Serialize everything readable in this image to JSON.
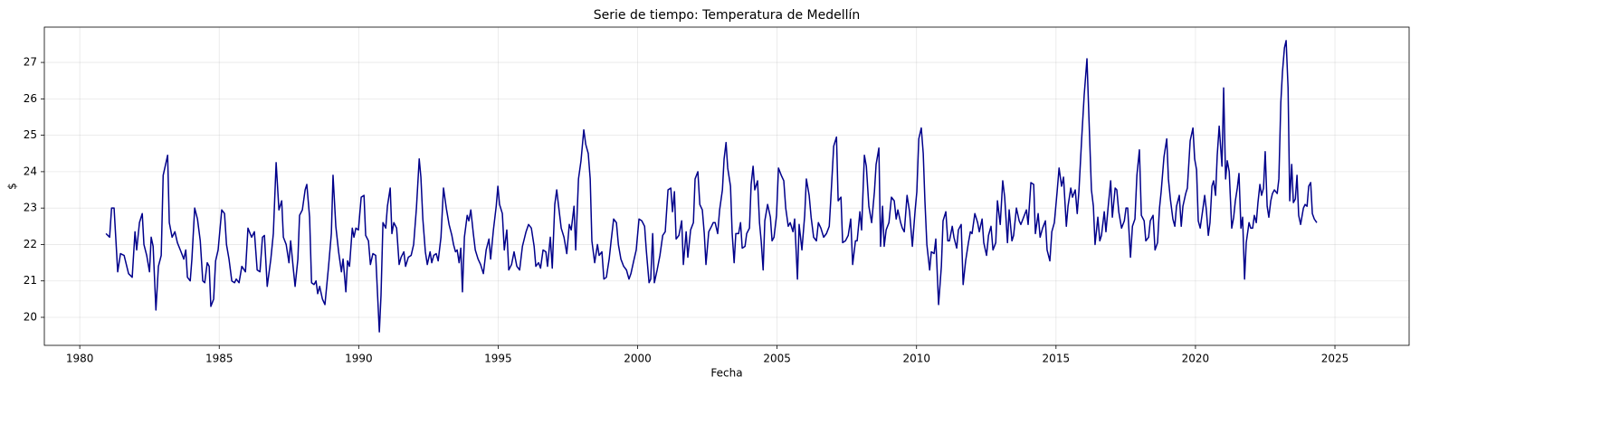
{
  "chart_data": {
    "type": "line",
    "title": "Serie de tiempo: Temperatura de Medellín",
    "x_label": "Fecha",
    "y_label": "$",
    "color": "#00008b",
    "grid": true,
    "xlim": [
      1978.73,
      2027.66
    ],
    "xticks": [
      1980,
      1985,
      1990,
      1995,
      2000,
      2005,
      2010,
      2015,
      2020,
      2025
    ],
    "ylim": [
      19.23,
      27.97
    ],
    "yticks": [
      20,
      21,
      22,
      23,
      24,
      25,
      26,
      27
    ],
    "x": [
      1980.94,
      1981.07,
      1981.14,
      1981.23,
      1981.36,
      1981.46,
      1981.59,
      1981.75,
      1981.88,
      1981.98,
      1982.04,
      1982.14,
      1982.24,
      1982.3,
      1982.4,
      1982.5,
      1982.56,
      1982.63,
      1982.73,
      1982.82,
      1982.92,
      1982.99,
      1983.15,
      1983.21,
      1983.31,
      1983.41,
      1983.5,
      1983.63,
      1983.73,
      1983.8,
      1983.86,
      1983.96,
      1984.02,
      1984.12,
      1984.22,
      1984.32,
      1984.41,
      1984.48,
      1984.57,
      1984.64,
      1984.7,
      1984.8,
      1984.87,
      1984.96,
      1985.09,
      1985.19,
      1985.26,
      1985.35,
      1985.45,
      1985.55,
      1985.61,
      1985.71,
      1985.81,
      1985.94,
      1986.03,
      1986.16,
      1986.26,
      1986.36,
      1986.46,
      1986.55,
      1986.62,
      1986.72,
      1986.85,
      1986.94,
      1987.04,
      1987.14,
      1987.24,
      1987.3,
      1987.4,
      1987.5,
      1987.56,
      1987.66,
      1987.72,
      1987.82,
      1987.88,
      1987.98,
      1988.08,
      1988.14,
      1988.24,
      1988.31,
      1988.4,
      1988.47,
      1988.53,
      1988.6,
      1988.7,
      1988.79,
      1988.92,
      1989.02,
      1989.08,
      1989.18,
      1989.28,
      1989.38,
      1989.44,
      1989.54,
      1989.6,
      1989.67,
      1989.77,
      1989.83,
      1989.9,
      1989.99,
      1990.09,
      1990.19,
      1990.25,
      1990.35,
      1990.42,
      1990.51,
      1990.61,
      1990.74,
      1990.8,
      1990.87,
      1990.97,
      1991.03,
      1991.13,
      1991.19,
      1991.26,
      1991.36,
      1991.45,
      1991.52,
      1991.62,
      1991.68,
      1991.78,
      1991.88,
      1991.97,
      1992.07,
      1992.17,
      1992.23,
      1992.3,
      1992.39,
      1992.46,
      1992.56,
      1992.62,
      1992.69,
      1992.78,
      1992.85,
      1992.95,
      1993.04,
      1993.14,
      1993.24,
      1993.34,
      1993.4,
      1993.47,
      1993.53,
      1993.6,
      1993.66,
      1993.72,
      1993.79,
      1993.89,
      1993.95,
      1994.02,
      1994.11,
      1994.18,
      1994.28,
      1994.37,
      1994.47,
      1994.57,
      1994.67,
      1994.73,
      1994.83,
      1994.93,
      1994.99,
      1995.05,
      1995.15,
      1995.22,
      1995.31,
      1995.38,
      1995.48,
      1995.57,
      1995.67,
      1995.77,
      1995.87,
      1996.0,
      1996.09,
      1996.19,
      1996.29,
      1996.35,
      1996.45,
      1996.52,
      1996.61,
      1996.71,
      1996.77,
      1996.87,
      1996.94,
      1997.03,
      1997.1,
      1997.16,
      1997.26,
      1997.36,
      1997.46,
      1997.55,
      1997.62,
      1997.72,
      1997.78,
      1997.88,
      1997.97,
      1998.07,
      1998.14,
      1998.23,
      1998.3,
      1998.36,
      1998.46,
      1998.56,
      1998.62,
      1998.72,
      1998.79,
      1998.88,
      1998.98,
      1999.05,
      1999.14,
      1999.24,
      1999.31,
      1999.4,
      1999.5,
      1999.6,
      1999.69,
      1999.76,
      1999.86,
      1999.95,
      2000.05,
      2000.15,
      2000.25,
      2000.31,
      2000.41,
      2000.47,
      2000.54,
      2000.6,
      2000.7,
      2000.8,
      2000.9,
      2000.99,
      2001.09,
      2001.19,
      2001.25,
      2001.32,
      2001.38,
      2001.48,
      2001.58,
      2001.64,
      2001.74,
      2001.8,
      2001.9,
      2002.0,
      2002.06,
      2002.16,
      2002.23,
      2002.32,
      2002.39,
      2002.45,
      2002.55,
      2002.65,
      2002.71,
      2002.78,
      2002.87,
      2002.94,
      2003.04,
      2003.1,
      2003.17,
      2003.23,
      2003.33,
      2003.39,
      2003.46,
      2003.52,
      2003.62,
      2003.69,
      2003.75,
      2003.85,
      2003.91,
      2004.01,
      2004.07,
      2004.14,
      2004.2,
      2004.3,
      2004.37,
      2004.43,
      2004.5,
      2004.56,
      2004.66,
      2004.76,
      2004.82,
      2004.89,
      2004.98,
      2005.05,
      2005.15,
      2005.24,
      2005.31,
      2005.4,
      2005.47,
      2005.57,
      2005.63,
      2005.73,
      2005.79,
      2005.89,
      2005.99,
      2006.05,
      2006.15,
      2006.22,
      2006.31,
      2006.41,
      2006.48,
      2006.57,
      2006.67,
      2006.77,
      2006.87,
      2006.93,
      2007.03,
      2007.13,
      2007.19,
      2007.29,
      2007.35,
      2007.45,
      2007.55,
      2007.64,
      2007.71,
      2007.81,
      2007.87,
      2007.97,
      2008.03,
      2008.13,
      2008.2,
      2008.29,
      2008.39,
      2008.49,
      2008.55,
      2008.65,
      2008.71,
      2008.78,
      2008.84,
      2008.91,
      2009.01,
      2009.1,
      2009.2,
      2009.27,
      2009.33,
      2009.43,
      2009.49,
      2009.56,
      2009.66,
      2009.75,
      2009.85,
      2009.95,
      2010.01,
      2010.08,
      2010.17,
      2010.24,
      2010.3,
      2010.37,
      2010.47,
      2010.53,
      2010.63,
      2010.69,
      2010.79,
      2010.89,
      2010.95,
      2011.05,
      2011.12,
      2011.18,
      2011.28,
      2011.34,
      2011.44,
      2011.5,
      2011.6,
      2011.67,
      2011.76,
      2011.86,
      2011.93,
      2011.99,
      2012.09,
      2012.19,
      2012.25,
      2012.35,
      2012.41,
      2012.51,
      2012.58,
      2012.67,
      2012.74,
      2012.84,
      2012.9,
      2013.0,
      2013.09,
      2013.16,
      2013.26,
      2013.32,
      2013.42,
      2013.48,
      2013.58,
      2013.68,
      2013.74,
      2013.84,
      2013.94,
      2014.0,
      2014.1,
      2014.2,
      2014.26,
      2014.36,
      2014.43,
      2014.52,
      2014.62,
      2014.68,
      2014.78,
      2014.85,
      2014.94,
      2015.04,
      2015.11,
      2015.2,
      2015.27,
      2015.37,
      2015.43,
      2015.53,
      2015.59,
      2015.69,
      2015.76,
      2015.82,
      2015.92,
      2016.01,
      2016.11,
      2016.18,
      2016.27,
      2016.34,
      2016.4,
      2016.5,
      2016.57,
      2016.63,
      2016.73,
      2016.79,
      2016.86,
      2016.96,
      2017.02,
      2017.12,
      2017.18,
      2017.25,
      2017.35,
      2017.45,
      2017.51,
      2017.57,
      2017.67,
      2017.74,
      2017.83,
      2017.9,
      2017.99,
      2018.06,
      2018.16,
      2018.22,
      2018.32,
      2018.38,
      2018.48,
      2018.55,
      2018.64,
      2018.71,
      2018.77,
      2018.87,
      2018.97,
      2019.03,
      2019.1,
      2019.19,
      2019.26,
      2019.32,
      2019.42,
      2019.49,
      2019.55,
      2019.65,
      2019.71,
      2019.81,
      2019.91,
      2019.97,
      2020.04,
      2020.1,
      2020.17,
      2020.27,
      2020.33,
      2020.39,
      2020.46,
      2020.52,
      2020.59,
      2020.65,
      2020.72,
      2020.78,
      2020.85,
      2020.95,
      2021.01,
      2021.08,
      2021.14,
      2021.21,
      2021.3,
      2021.37,
      2021.43,
      2021.5,
      2021.56,
      2021.63,
      2021.69,
      2021.76,
      2021.82,
      2021.92,
      2021.98,
      2022.05,
      2022.11,
      2022.18,
      2022.24,
      2022.31,
      2022.37,
      2022.44,
      2022.5,
      2022.57,
      2022.63,
      2022.7,
      2022.76,
      2022.83,
      2022.93,
      2022.99,
      2023.06,
      2023.12,
      2023.19,
      2023.25,
      2023.32,
      2023.38,
      2023.45,
      2023.51,
      2023.58,
      2023.64,
      2023.7,
      2023.77,
      2023.87,
      2023.93,
      2024.0,
      2024.06,
      2024.13,
      2024.19,
      2024.26,
      2024.35
    ],
    "values": [
      22.3,
      22.2,
      23.0,
      23.0,
      21.25,
      21.75,
      21.7,
      21.2,
      21.1,
      22.35,
      21.85,
      22.6,
      22.85,
      22.0,
      21.7,
      21.25,
      22.2,
      21.95,
      20.2,
      21.4,
      21.7,
      23.9,
      24.45,
      22.6,
      22.2,
      22.35,
      22.05,
      21.8,
      21.6,
      21.85,
      21.1,
      21.0,
      21.6,
      23.0,
      22.7,
      22.1,
      21.0,
      20.95,
      21.5,
      21.4,
      20.3,
      20.5,
      21.55,
      21.85,
      22.95,
      22.85,
      22.0,
      21.6,
      21.0,
      20.95,
      21.05,
      20.95,
      21.4,
      21.25,
      22.45,
      22.2,
      22.35,
      21.3,
      21.25,
      22.2,
      22.25,
      20.85,
      21.6,
      22.3,
      24.25,
      22.95,
      23.2,
      22.2,
      22.0,
      21.5,
      22.1,
      21.3,
      20.85,
      21.6,
      22.8,
      22.95,
      23.5,
      23.65,
      22.75,
      20.95,
      20.9,
      21.0,
      20.65,
      20.85,
      20.5,
      20.35,
      21.4,
      22.3,
      23.9,
      22.5,
      21.8,
      21.25,
      21.6,
      20.7,
      21.55,
      21.4,
      22.45,
      22.2,
      22.45,
      22.4,
      23.3,
      23.35,
      22.25,
      22.1,
      21.45,
      21.75,
      21.7,
      19.6,
      20.6,
      22.6,
      22.45,
      23.05,
      23.55,
      22.3,
      22.6,
      22.45,
      21.45,
      21.65,
      21.8,
      21.4,
      21.65,
      21.7,
      22.0,
      23.0,
      24.35,
      23.85,
      22.7,
      21.8,
      21.45,
      21.8,
      21.5,
      21.7,
      21.75,
      21.55,
      22.2,
      23.55,
      23.0,
      22.55,
      22.25,
      22.0,
      21.8,
      21.85,
      21.5,
      21.9,
      20.7,
      22.2,
      22.8,
      22.65,
      22.95,
      22.3,
      21.85,
      21.6,
      21.45,
      21.2,
      21.85,
      22.15,
      21.6,
      22.4,
      23.05,
      23.6,
      23.1,
      22.85,
      21.85,
      22.4,
      21.3,
      21.45,
      21.8,
      21.4,
      21.3,
      21.95,
      22.35,
      22.55,
      22.45,
      21.95,
      21.4,
      21.5,
      21.35,
      21.85,
      21.8,
      21.4,
      22.2,
      21.35,
      23.1,
      23.5,
      23.1,
      22.45,
      22.2,
      21.75,
      22.55,
      22.4,
      23.05,
      21.85,
      23.8,
      24.3,
      25.15,
      24.75,
      24.5,
      23.8,
      22.1,
      21.5,
      22.0,
      21.7,
      21.8,
      21.05,
      21.1,
      21.6,
      22.1,
      22.7,
      22.6,
      22.0,
      21.6,
      21.4,
      21.3,
      21.05,
      21.2,
      21.55,
      21.85,
      22.7,
      22.65,
      22.5,
      21.85,
      20.95,
      21.05,
      22.3,
      20.95,
      21.3,
      21.7,
      22.25,
      22.35,
      23.5,
      23.55,
      22.9,
      23.45,
      22.15,
      22.25,
      22.65,
      21.45,
      22.35,
      21.65,
      22.4,
      22.6,
      23.8,
      24.0,
      23.1,
      22.95,
      22.3,
      21.45,
      22.35,
      22.5,
      22.6,
      22.6,
      22.3,
      22.95,
      23.5,
      24.35,
      24.8,
      24.1,
      23.6,
      22.3,
      21.5,
      22.3,
      22.3,
      22.6,
      21.9,
      21.95,
      22.3,
      22.45,
      23.65,
      24.15,
      23.5,
      23.75,
      22.6,
      22.1,
      21.3,
      22.65,
      23.1,
      22.75,
      22.1,
      22.2,
      22.8,
      24.1,
      23.9,
      23.75,
      23.0,
      22.5,
      22.6,
      22.35,
      22.7,
      21.05,
      22.55,
      21.85,
      22.8,
      23.8,
      23.35,
      22.75,
      22.2,
      22.1,
      22.6,
      22.45,
      22.2,
      22.3,
      22.5,
      23.3,
      24.7,
      24.95,
      23.2,
      23.3,
      22.05,
      22.1,
      22.25,
      22.7,
      21.45,
      22.1,
      22.1,
      22.9,
      22.4,
      24.45,
      24.15,
      23.05,
      22.6,
      23.45,
      24.2,
      24.65,
      21.95,
      23.05,
      21.95,
      22.4,
      22.6,
      23.3,
      23.2,
      22.7,
      22.95,
      22.6,
      22.45,
      22.35,
      23.35,
      22.9,
      21.95,
      22.95,
      23.45,
      24.9,
      25.2,
      24.5,
      23.2,
      22.0,
      21.3,
      21.8,
      21.75,
      22.15,
      20.35,
      21.4,
      22.65,
      22.9,
      22.1,
      22.1,
      22.5,
      22.2,
      21.9,
      22.4,
      22.55,
      20.9,
      21.55,
      22.05,
      22.35,
      22.3,
      22.85,
      22.6,
      22.35,
      22.7,
      22.05,
      21.7,
      22.25,
      22.5,
      21.85,
      22.05,
      23.2,
      22.55,
      23.75,
      23.3,
      22.05,
      22.95,
      22.1,
      22.25,
      23.0,
      22.65,
      22.55,
      22.75,
      22.95,
      22.55,
      23.7,
      23.65,
      22.3,
      22.85,
      22.2,
      22.45,
      22.65,
      21.85,
      21.55,
      22.35,
      22.6,
      23.45,
      24.1,
      23.6,
      23.85,
      22.5,
      23.05,
      23.55,
      23.3,
      23.5,
      22.85,
      23.45,
      24.9,
      26.1,
      27.1,
      25.5,
      23.5,
      23.05,
      22.0,
      22.75,
      22.1,
      22.25,
      22.9,
      22.35,
      22.95,
      23.75,
      22.75,
      23.55,
      23.5,
      22.9,
      22.45,
      22.65,
      23.0,
      23.0,
      21.65,
      22.5,
      22.7,
      23.9,
      24.6,
      22.8,
      22.65,
      22.1,
      22.2,
      22.65,
      22.8,
      21.85,
      22.05,
      23.0,
      23.45,
      24.4,
      24.9,
      23.8,
      23.25,
      22.7,
      22.5,
      23.05,
      23.35,
      22.5,
      23.05,
      23.4,
      23.55,
      24.85,
      25.2,
      24.35,
      24.05,
      22.65,
      22.45,
      23.0,
      23.35,
      22.95,
      22.25,
      22.6,
      23.6,
      23.75,
      23.35,
      24.45,
      25.25,
      24.15,
      26.3,
      23.8,
      24.3,
      24.0,
      22.45,
      22.75,
      23.2,
      23.55,
      23.95,
      22.45,
      22.75,
      21.05,
      22.05,
      22.6,
      22.45,
      22.45,
      22.8,
      22.6,
      23.15,
      23.65,
      23.35,
      23.55,
      24.55,
      23.05,
      22.75,
      23.2,
      23.4,
      23.5,
      23.4,
      23.8,
      25.9,
      26.75,
      27.4,
      27.6,
      26.3,
      23.2,
      24.2,
      23.15,
      23.25,
      23.9,
      22.8,
      22.55,
      23.0,
      23.1,
      23.05,
      23.6,
      23.7,
      22.85,
      22.7,
      22.6
    ]
  }
}
